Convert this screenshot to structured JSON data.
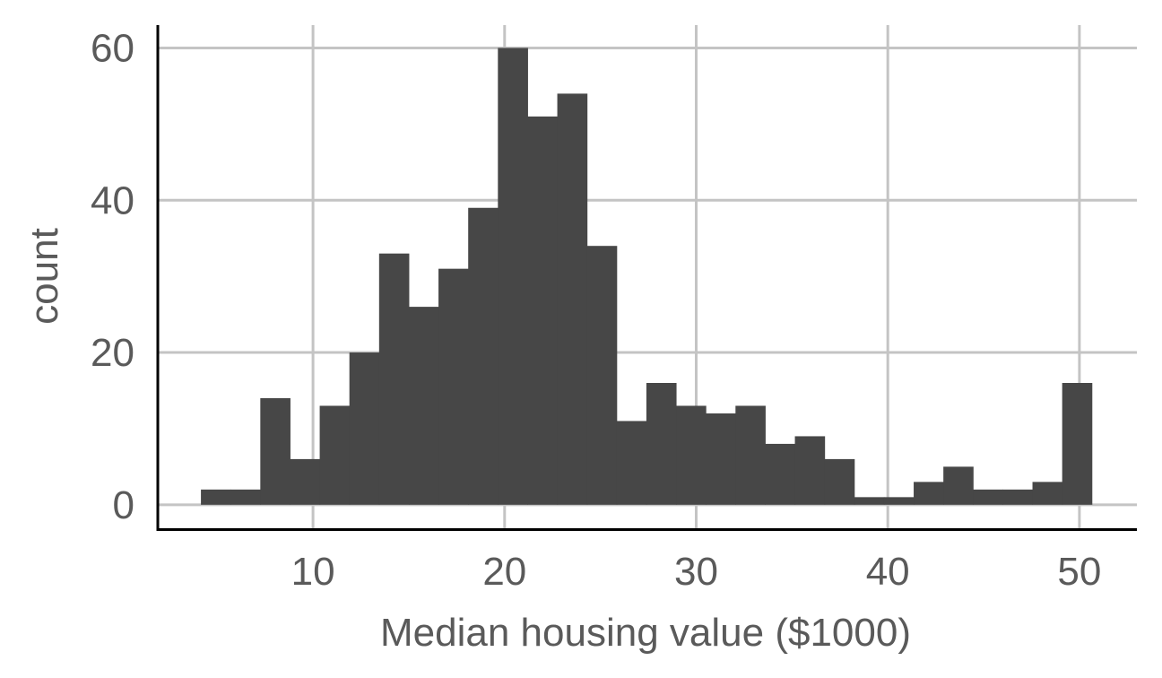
{
  "chart_data": {
    "type": "histogram",
    "title": "",
    "xlabel": "Median housing value ($1000)",
    "ylabel": "count",
    "xlim": [
      1.9,
      53
    ],
    "ylim": [
      -3.2,
      63
    ],
    "x_ticks": [
      10,
      20,
      30,
      40,
      50
    ],
    "y_ticks": [
      0,
      20,
      40,
      60
    ],
    "grid": true,
    "legend": "none",
    "bar_color": "#474747",
    "bin_width": 1.55,
    "bins": [
      {
        "x0": 4.15,
        "x1": 5.7,
        "count": 2
      },
      {
        "x0": 5.7,
        "x1": 7.25,
        "count": 2
      },
      {
        "x0": 7.25,
        "x1": 8.8,
        "count": 14
      },
      {
        "x0": 8.8,
        "x1": 10.35,
        "count": 6
      },
      {
        "x0": 10.35,
        "x1": 11.9,
        "count": 13
      },
      {
        "x0": 11.9,
        "x1": 13.45,
        "count": 20
      },
      {
        "x0": 13.45,
        "x1": 15.0,
        "count": 33
      },
      {
        "x0": 15.0,
        "x1": 16.55,
        "count": 26
      },
      {
        "x0": 16.55,
        "x1": 18.1,
        "count": 31
      },
      {
        "x0": 18.1,
        "x1": 19.65,
        "count": 39
      },
      {
        "x0": 19.65,
        "x1": 21.2,
        "count": 60
      },
      {
        "x0": 21.2,
        "x1": 22.75,
        "count": 51
      },
      {
        "x0": 22.75,
        "x1": 24.3,
        "count": 54
      },
      {
        "x0": 24.3,
        "x1": 25.85,
        "count": 34
      },
      {
        "x0": 25.85,
        "x1": 27.4,
        "count": 11
      },
      {
        "x0": 27.4,
        "x1": 28.95,
        "count": 16
      },
      {
        "x0": 28.95,
        "x1": 30.5,
        "count": 13
      },
      {
        "x0": 30.5,
        "x1": 32.05,
        "count": 12
      },
      {
        "x0": 32.05,
        "x1": 33.6,
        "count": 13
      },
      {
        "x0": 33.6,
        "x1": 35.15,
        "count": 8
      },
      {
        "x0": 35.15,
        "x1": 36.7,
        "count": 9
      },
      {
        "x0": 36.7,
        "x1": 38.25,
        "count": 6
      },
      {
        "x0": 38.25,
        "x1": 39.8,
        "count": 1
      },
      {
        "x0": 39.8,
        "x1": 41.35,
        "count": 1
      },
      {
        "x0": 41.35,
        "x1": 42.9,
        "count": 3
      },
      {
        "x0": 42.9,
        "x1": 44.45,
        "count": 5
      },
      {
        "x0": 44.45,
        "x1": 46.0,
        "count": 2
      },
      {
        "x0": 46.0,
        "x1": 47.55,
        "count": 2
      },
      {
        "x0": 47.55,
        "x1": 49.1,
        "count": 3
      },
      {
        "x0": 49.1,
        "x1": 50.65,
        "count": 16
      }
    ]
  }
}
